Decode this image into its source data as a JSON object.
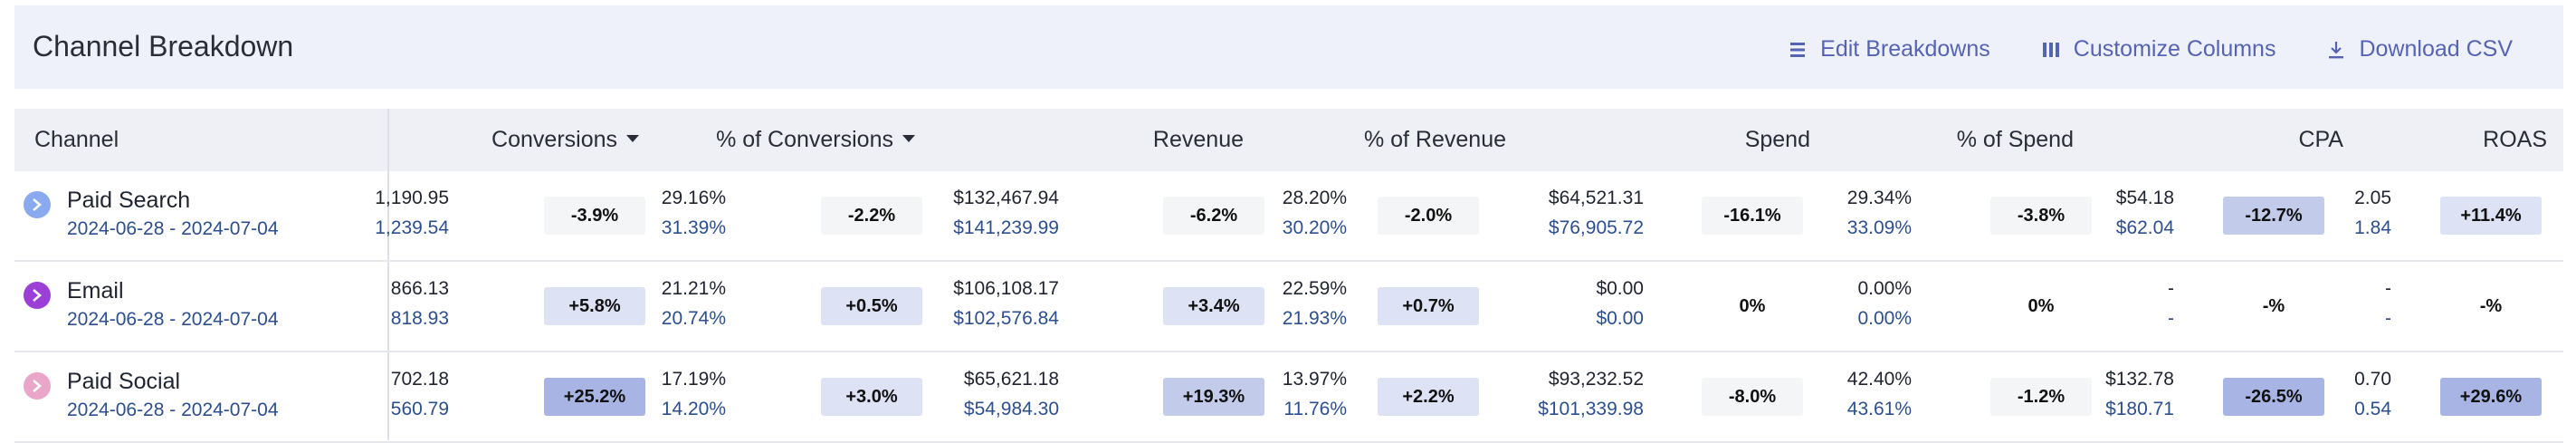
{
  "header": {
    "title": "Channel Breakdown",
    "actions": {
      "edit": "Edit Breakdowns",
      "customize": "Customize Columns",
      "download": "Download CSV"
    }
  },
  "columns": {
    "channel": "Channel",
    "conversions": "Conversions",
    "pct_conversions": "% of Conversions",
    "revenue": "Revenue",
    "pct_revenue": "% of Revenue",
    "spend": "Spend",
    "pct_spend": "% of Spend",
    "cpa": "CPA",
    "roas": "ROAS"
  },
  "rows": [
    {
      "name": "Paid Search",
      "date": "2024-06-28 - 2024-07-04",
      "icon_color": "#8aaaf0",
      "conversions": {
        "cur": "1,190.95",
        "prev": "1,239.54",
        "delta": "-3.9%"
      },
      "pct_conversions": {
        "cur": "29.16%",
        "prev": "31.39%",
        "delta": "-2.2%"
      },
      "revenue": {
        "cur": "$132,467.94",
        "prev": "$141,239.99",
        "delta": "-6.2%"
      },
      "pct_revenue": {
        "cur": "28.20%",
        "prev": "30.20%",
        "delta": "-2.0%"
      },
      "spend": {
        "cur": "$64,521.31",
        "prev": "$76,905.72",
        "delta": "-16.1%"
      },
      "pct_spend": {
        "cur": "29.34%",
        "prev": "33.09%",
        "delta": "-3.8%"
      },
      "cpa": {
        "cur": "$54.18",
        "prev": "$62.04",
        "delta": "-12.7%"
      },
      "roas": {
        "cur": "2.05",
        "prev": "1.84",
        "delta": "+11.4%"
      }
    },
    {
      "name": "Email",
      "date": "2024-06-28 - 2024-07-04",
      "icon_color": "#9b3fd6",
      "conversions": {
        "cur": "866.13",
        "prev": "818.93",
        "delta": "+5.8%"
      },
      "pct_conversions": {
        "cur": "21.21%",
        "prev": "20.74%",
        "delta": "+0.5%"
      },
      "revenue": {
        "cur": "$106,108.17",
        "prev": "$102,576.84",
        "delta": "+3.4%"
      },
      "pct_revenue": {
        "cur": "22.59%",
        "prev": "21.93%",
        "delta": "+0.7%"
      },
      "spend": {
        "cur": "$0.00",
        "prev": "$0.00",
        "delta": "0%"
      },
      "pct_spend": {
        "cur": "0.00%",
        "prev": "0.00%",
        "delta": "0%"
      },
      "cpa": {
        "cur": "-",
        "prev": "-",
        "delta": "-%"
      },
      "roas": {
        "cur": "-",
        "prev": "-",
        "delta": "-%"
      }
    },
    {
      "name": "Paid Social",
      "date": "2024-06-28 - 2024-07-04",
      "icon_color": "#eaa6c8",
      "conversions": {
        "cur": "702.18",
        "prev": "560.79",
        "delta": "+25.2%"
      },
      "pct_conversions": {
        "cur": "17.19%",
        "prev": "14.20%",
        "delta": "+3.0%"
      },
      "revenue": {
        "cur": "$65,621.18",
        "prev": "$54,984.30",
        "delta": "+19.3%"
      },
      "pct_revenue": {
        "cur": "13.97%",
        "prev": "11.76%",
        "delta": "+2.2%"
      },
      "spend": {
        "cur": "$93,232.52",
        "prev": "$101,339.98",
        "delta": "-8.0%"
      },
      "pct_spend": {
        "cur": "42.40%",
        "prev": "43.61%",
        "delta": "-1.2%"
      },
      "cpa": {
        "cur": "$132.78",
        "prev": "$180.71",
        "delta": "-26.5%"
      },
      "roas": {
        "cur": "0.70",
        "prev": "0.54",
        "delta": "+29.6%"
      }
    }
  ],
  "badge_colors": {
    "neutral": "#f4f5f7",
    "light": "#dde2f4",
    "medium": "#c3cbeb",
    "strong": "#a8b4e4"
  },
  "badge_levels": [
    [
      "neutral",
      "neutral",
      "neutral",
      "neutral",
      "neutral",
      "neutral",
      "medium",
      "light"
    ],
    [
      "light",
      "light",
      "light",
      "light",
      "none",
      "none",
      "none",
      "none"
    ],
    [
      "strong",
      "light",
      "medium",
      "light",
      "neutral",
      "neutral",
      "strong",
      "strong"
    ]
  ]
}
